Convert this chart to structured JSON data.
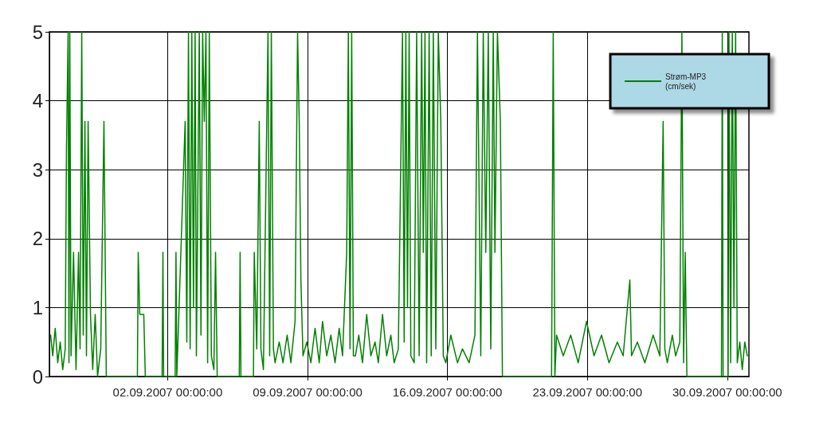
{
  "chart_data": {
    "type": "line",
    "x": [
      "2007-08-27T03:30",
      "2007-08-27T06:00",
      "2007-08-27T09:00",
      "2007-08-27T12:00",
      "2007-08-27T15:00",
      "2007-08-27T18:00",
      "2007-08-27T21:00",
      "2007-08-27T22:30",
      "2007-08-28T00:30",
      "2007-08-28T01:30",
      "2007-08-28T02:30",
      "2007-08-28T04:00",
      "2007-08-28T07:00",
      "2007-08-28T10:00",
      "2007-08-28T13:00",
      "2007-08-28T14:50",
      "2007-08-28T16:50",
      "2007-08-28T18:40",
      "2007-08-28T20:40",
      "2007-08-28T22:30",
      "2007-08-29T00:30",
      "2007-08-29T03:20",
      "2007-08-29T06:00",
      "2007-08-29T09:00",
      "2007-08-29T11:50",
      "2007-08-29T15:40",
      "2007-08-29T19:30",
      "2007-08-29T22:20",
      "2007-08-31T11:40",
      "2007-08-31T12:40",
      "2007-08-31T14:30",
      "2007-08-31T19:20",
      "2007-08-31T21:10",
      "2007-09-01T17:20",
      "2007-09-01T18:20",
      "2007-09-01T19:10",
      "2007-09-02T09:00",
      "2007-09-02T10:00",
      "2007-09-02T11:00",
      "2007-09-02T21:00",
      "2007-09-02T23:00",
      "2007-09-03T01:00",
      "2007-09-03T03:00",
      "2007-09-03T05:00",
      "2007-09-03T07:00",
      "2007-09-03T09:00",
      "2007-09-03T10:30",
      "2007-09-03T14:00",
      "2007-09-03T16:00",
      "2007-09-03T18:00",
      "2007-09-03T20:00",
      "2007-09-03T22:00",
      "2007-09-04T00:00",
      "2007-09-04T02:00",
      "2007-09-04T04:30",
      "2007-09-04T07:30",
      "2007-09-04T09:30",
      "2007-09-04T11:30",
      "2007-09-05T14:00",
      "2007-09-05T15:00",
      "2007-09-05T16:00",
      "2007-09-06T07:00",
      "2007-09-06T08:00",
      "2007-09-06T11:00",
      "2007-09-06T14:00",
      "2007-09-06T16:00",
      "2007-09-06T19:00",
      "2007-09-07T00:30",
      "2007-09-07T02:30",
      "2007-09-07T04:30",
      "2007-09-07T07:00",
      "2007-09-07T09:00",
      "2007-09-07T14:00",
      "2007-09-07T18:30",
      "2007-09-07T23:30",
      "2007-09-08T04:00",
      "2007-09-08T09:00",
      "2007-09-08T12:00",
      "2007-09-08T14:00",
      "2007-09-08T16:00",
      "2007-09-08T18:30",
      "2007-09-08T23:00",
      "2007-09-09T04:00",
      "2007-09-09T09:00",
      "2007-09-09T14:00",
      "2007-09-09T18:00",
      "2007-09-09T23:00",
      "2007-09-10T04:00",
      "2007-09-10T09:00",
      "2007-09-10T14:00",
      "2007-09-10T18:00",
      "2007-09-10T23:00",
      "2007-09-11T01:00",
      "2007-09-11T03:00",
      "2007-09-11T05:00",
      "2007-09-11T07:00",
      "2007-09-11T09:30",
      "2007-09-11T13:30",
      "2007-09-11T18:00",
      "2007-09-11T23:00",
      "2007-09-12T04:00",
      "2007-09-12T09:00",
      "2007-09-12T13:00",
      "2007-09-12T18:00",
      "2007-09-12T23:00",
      "2007-09-13T04:00",
      "2007-09-13T08:00",
      "2007-09-13T13:00",
      "2007-09-13T18:00",
      "2007-09-13T20:00",
      "2007-09-13T22:00",
      "2007-09-14T00:00",
      "2007-09-14T02:00",
      "2007-09-14T04:00",
      "2007-09-14T08:00",
      "2007-09-14T11:00",
      "2007-09-14T14:00",
      "2007-09-14T17:00",
      "2007-09-14T19:00",
      "2007-09-14T21:00",
      "2007-09-14T23:00",
      "2007-09-15T02:00",
      "2007-09-15T04:30",
      "2007-09-15T07:00",
      "2007-09-15T10:00",
      "2007-09-15T13:00",
      "2007-09-15T16:00",
      "2007-09-15T19:00",
      "2007-09-15T22:00",
      "2007-09-16T04:00",
      "2007-09-16T12:00",
      "2007-09-16T18:00",
      "2007-09-17T02:00",
      "2007-09-17T09:00",
      "2007-09-17T12:00",
      "2007-09-17T16:00",
      "2007-09-17T19:00",
      "2007-09-17T22:00",
      "2007-09-18T01:00",
      "2007-09-18T04:00",
      "2007-09-18T07:00",
      "2007-09-18T09:00",
      "2007-09-18T12:00",
      "2007-09-18T15:30",
      "2007-09-18T18:00",
      "2007-09-21T05:00",
      "2007-09-21T07:00",
      "2007-09-21T09:00",
      "2007-09-21T11:00",
      "2007-09-21T19:00",
      "2007-09-22T04:00",
      "2007-09-22T13:00",
      "2007-09-22T23:00",
      "2007-09-23T08:00",
      "2007-09-23T17:00",
      "2007-09-24T02:00",
      "2007-09-24T12:00",
      "2007-09-24T19:00",
      "2007-09-25T03:00",
      "2007-09-25T05:00",
      "2007-09-25T12:00",
      "2007-09-25T21:00",
      "2007-09-26T07:00",
      "2007-09-26T15:00",
      "2007-09-26T19:00",
      "2007-09-26T21:00",
      "2007-09-27T00:00",
      "2007-09-27T06:00",
      "2007-09-27T10:00",
      "2007-09-27T15:00",
      "2007-09-27T17:30",
      "2007-09-27T19:30",
      "2007-09-27T21:30",
      "2007-09-27T23:30",
      "2007-09-29T17:00",
      "2007-09-29T18:00",
      "2007-09-29T19:00",
      "2007-09-30T01:00",
      "2007-09-30T02:00",
      "2007-09-30T04:00",
      "2007-09-30T06:00",
      "2007-09-30T08:00",
      "2007-09-30T10:00",
      "2007-09-30T12:00",
      "2007-09-30T15:00",
      "2007-09-30T18:00",
      "2007-09-30T21:00",
      "2007-10-01T00:00"
    ],
    "series": [
      {
        "name": "Strøm-MP3 (cm/sek)",
        "color": "#008000",
        "values": [
          0.6,
          0.3,
          0.7,
          0.2,
          0.5,
          0.1,
          0.4,
          3.3,
          5,
          0.2,
          5,
          0.3,
          1.8,
          0.1,
          1.8,
          0.4,
          5,
          0.6,
          3.7,
          0.3,
          3.7,
          0.9,
          0.1,
          0.9,
          0,
          0.4,
          3.7,
          0,
          0,
          1.8,
          0.9,
          0.9,
          0,
          0,
          1.8,
          0,
          0,
          1.8,
          0,
          3.7,
          0.5,
          5,
          0.4,
          5,
          1.0,
          5,
          0.3,
          5,
          0.6,
          5,
          3.7,
          5,
          0.2,
          5,
          0.3,
          0.1,
          1.8,
          0,
          0,
          1.8,
          0,
          0,
          1.8,
          0.4,
          3.7,
          0.4,
          0.1,
          5,
          0.3,
          5,
          0.4,
          0.2,
          0.5,
          0.2,
          0.6,
          0.2,
          0.8,
          5,
          3.7,
          1.4,
          0.3,
          0.5,
          0.2,
          0.7,
          0.2,
          0.8,
          0.3,
          0.6,
          0.2,
          0.7,
          0.3,
          1.8,
          5,
          0.4,
          5,
          0.3,
          0.3,
          0.6,
          0.2,
          0.9,
          0.3,
          0.5,
          0.2,
          0.9,
          0.3,
          0.6,
          0.2,
          0.4,
          5,
          0.5,
          5,
          1.0,
          5,
          0.3,
          0.2,
          5,
          0.3,
          5,
          1.8,
          5,
          0.2,
          5,
          0.3,
          5,
          0.4,
          5,
          3.7,
          0.3,
          0.2,
          0.6,
          0.2,
          0.4,
          0.2,
          0.6,
          5,
          0.3,
          5,
          1.8,
          5,
          0.4,
          5,
          1.8,
          5,
          3.7,
          0,
          0,
          5,
          0,
          0.6,
          0.3,
          0.6,
          0.2,
          0.8,
          0.3,
          0.6,
          0.2,
          0.5,
          0.3,
          1.4,
          0.3,
          0.5,
          0.2,
          0.6,
          0.3,
          3.7,
          0.4,
          0.2,
          0.6,
          0.3,
          0.5,
          5,
          0.2,
          1.8,
          0,
          0,
          5,
          0,
          0,
          5,
          0.2,
          5,
          1.0,
          5,
          0.2,
          0.5,
          0.1,
          0.5,
          0.3
        ]
      }
    ],
    "xlim": [
      "2007-08-27T02:00",
      "2007-10-01T02:00"
    ],
    "xticks": [
      {
        "value": "2007-09-02T00:00",
        "label": "02.09.2007 00:00:00"
      },
      {
        "value": "2007-09-09T00:00",
        "label": "09.09.2007 00:00:00"
      },
      {
        "value": "2007-09-16T00:00",
        "label": "16.09.2007 00:00:00"
      },
      {
        "value": "2007-09-23T00:00",
        "label": "23.09.2007 00:00:00"
      },
      {
        "value": "2007-09-30T00:00",
        "label": "30.09.2007 00:00:00"
      }
    ],
    "ylim": [
      0,
      5
    ],
    "yticks": [
      0,
      1,
      2,
      3,
      4,
      5
    ],
    "grid": true,
    "legend": "top right",
    "marker": "none",
    "line_style": "solid"
  }
}
